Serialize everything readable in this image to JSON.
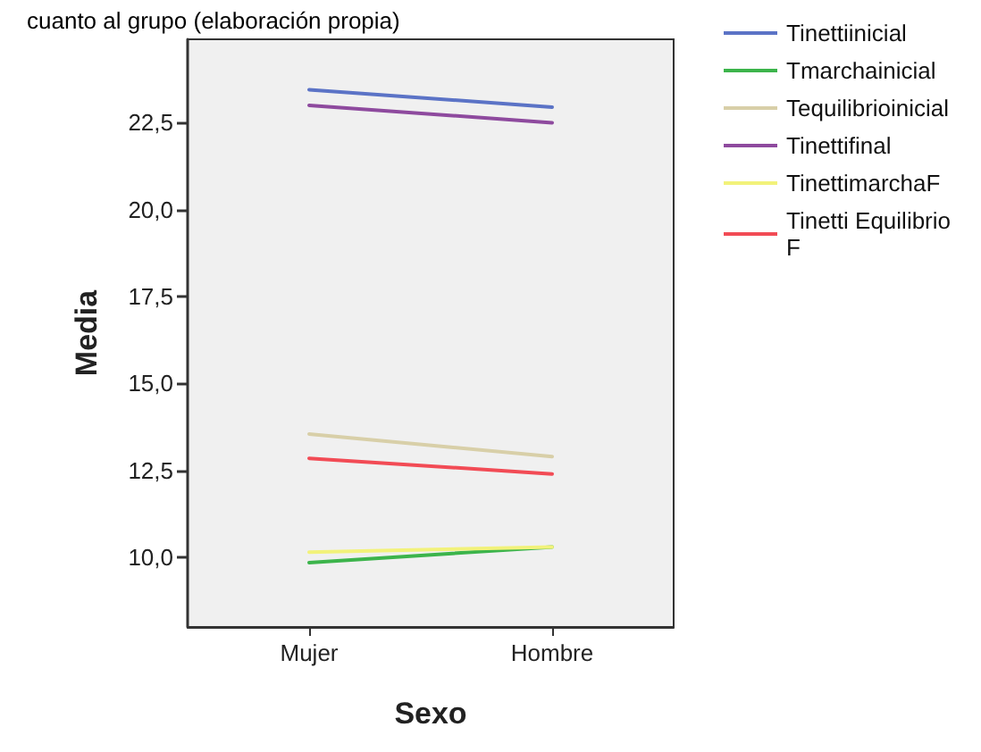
{
  "chart_data": {
    "type": "line",
    "title": "cuanto al grupo (elaboración propia)",
    "xlabel": "Sexo",
    "ylabel": "Media",
    "categories": [
      "Mujer",
      "Hombre"
    ],
    "series": [
      {
        "name": "Tinettiinicial",
        "color": "#5b73c6",
        "values": [
          23.45,
          22.95
        ]
      },
      {
        "name": "Tmarchainicial",
        "color": "#3cb44b",
        "values": [
          9.85,
          10.3
        ]
      },
      {
        "name": "Tequilibrioinicial",
        "color": "#d8cfa8",
        "values": [
          13.55,
          12.9
        ]
      },
      {
        "name": "Tinettifinal",
        "color": "#8e4a9e",
        "values": [
          23.0,
          22.5
        ]
      },
      {
        "name": "TinettimarchaF",
        "color": "#f2f27a",
        "values": [
          10.15,
          10.3
        ]
      },
      {
        "name": "Tinetti EquilibrioF",
        "color": "#f24b55",
        "values": [
          12.85,
          12.4
        ]
      }
    ],
    "ylim": [
      8.0,
      24.9
    ],
    "yticks": [
      {
        "value": 10,
        "label": "10,0"
      },
      {
        "value": 12.5,
        "label": "12,5"
      },
      {
        "value": 15,
        "label": "15,0"
      },
      {
        "value": 17.5,
        "label": "17,5"
      },
      {
        "value": 20,
        "label": "20,0"
      },
      {
        "value": 22.5,
        "label": "22,5"
      }
    ],
    "grid": false,
    "legend": "right",
    "marker": "none",
    "line_style": "solid"
  }
}
